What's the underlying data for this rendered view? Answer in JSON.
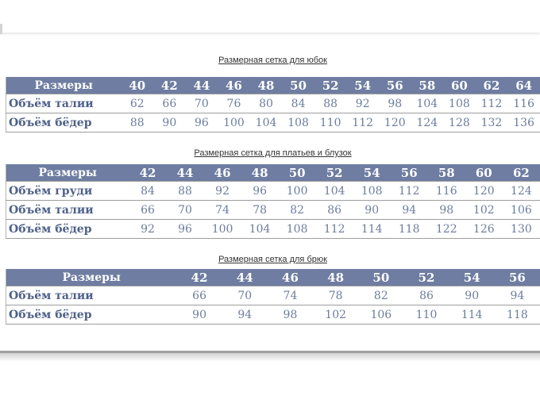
{
  "colors": {
    "header_bg": "#6e7da1",
    "header_text": "#ffffff",
    "row_label": "#4e608a",
    "cell_value": "#6d7d9d",
    "row_border": "#9d9d9d",
    "title_text": "#333333"
  },
  "tables": [
    {
      "title": "Размерная сетка для юбок",
      "corner_label": "Размеры",
      "sizes": [
        "40",
        "42",
        "44",
        "46",
        "48",
        "50",
        "52",
        "54",
        "56",
        "58",
        "60",
        "62",
        "64"
      ],
      "rows": [
        {
          "label": "Объём талии",
          "values": [
            "62",
            "66",
            "70",
            "76",
            "80",
            "84",
            "88",
            "92",
            "98",
            "104",
            "108",
            "112",
            "116"
          ]
        },
        {
          "label": "Объём бёдер",
          "values": [
            "88",
            "90",
            "96",
            "100",
            "104",
            "108",
            "110",
            "112",
            "120",
            "124",
            "128",
            "132",
            "136"
          ]
        }
      ]
    },
    {
      "title": "Размерная сетка для платьев и блузок",
      "corner_label": "Размеры",
      "sizes": [
        "42",
        "44",
        "46",
        "48",
        "50",
        "52",
        "54",
        "56",
        "58",
        "60",
        "62"
      ],
      "rows": [
        {
          "label": "Объём груди",
          "values": [
            "84",
            "88",
            "92",
            "96",
            "100",
            "104",
            "108",
            "112",
            "116",
            "120",
            "124"
          ]
        },
        {
          "label": "Объём талии",
          "values": [
            "66",
            "70",
            "74",
            "78",
            "82",
            "86",
            "90",
            "94",
            "98",
            "102",
            "106"
          ]
        },
        {
          "label": "Объём бёдер",
          "values": [
            "92",
            "96",
            "100",
            "104",
            "108",
            "112",
            "114",
            "118",
            "122",
            "126",
            "130"
          ]
        }
      ]
    },
    {
      "title": "Размерная сетка для брюк",
      "corner_label": "Размеры",
      "sizes": [
        "42",
        "44",
        "46",
        "48",
        "50",
        "52",
        "54",
        "56"
      ],
      "rows": [
        {
          "label": "Объём талии",
          "values": [
            "66",
            "70",
            "74",
            "78",
            "82",
            "86",
            "90",
            "94"
          ]
        },
        {
          "label": "Объём бёдер",
          "values": [
            "90",
            "94",
            "98",
            "102",
            "106",
            "110",
            "114",
            "118"
          ]
        }
      ]
    }
  ]
}
